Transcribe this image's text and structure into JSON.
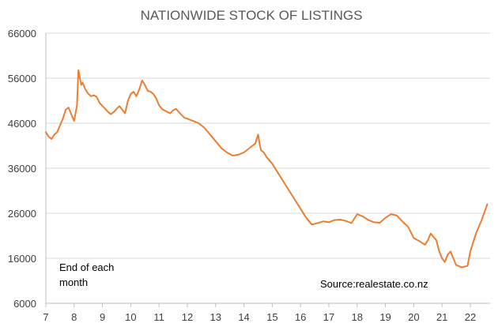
{
  "chart_data": {
    "type": "line",
    "title": "NATIONWIDE STOCK OF LISTINGS",
    "xlabel": "",
    "ylabel": "",
    "x_ticks": [
      "7",
      "8",
      "9",
      "10",
      "11",
      "12",
      "13",
      "14",
      "15",
      "16",
      "17",
      "18",
      "19",
      "20",
      "21",
      "22"
    ],
    "xlim": [
      7,
      22.7
    ],
    "ylim": [
      6000,
      66000
    ],
    "y_ticks": [
      "6000",
      "16000",
      "26000",
      "36000",
      "46000",
      "56000",
      "66000"
    ],
    "grid": true,
    "legend": "none",
    "annotations": [
      {
        "lines": [
          "End of each",
          "month"
        ]
      },
      {
        "lines": [
          "Source:realestate.co.nz"
        ]
      }
    ],
    "series": [
      {
        "color": "#ED7D31",
        "x": [
          7.0,
          7.1,
          7.2,
          7.3,
          7.4,
          7.5,
          7.6,
          7.7,
          7.8,
          7.9,
          8.0,
          8.1,
          8.15,
          8.25,
          8.3,
          8.4,
          8.5,
          8.6,
          8.7,
          8.8,
          8.9,
          9.0,
          9.1,
          9.2,
          9.3,
          9.4,
          9.5,
          9.6,
          9.7,
          9.8,
          9.9,
          10.0,
          10.1,
          10.2,
          10.3,
          10.4,
          10.5,
          10.55,
          10.6,
          10.7,
          10.8,
          10.9,
          11.0,
          11.1,
          11.2,
          11.3,
          11.4,
          11.5,
          11.6,
          11.7,
          11.8,
          11.9,
          12.0,
          12.2,
          12.4,
          12.6,
          12.8,
          13.0,
          13.2,
          13.4,
          13.6,
          13.8,
          14.0,
          14.2,
          14.4,
          14.5,
          14.55,
          14.6,
          14.7,
          14.8,
          15.0,
          15.2,
          15.4,
          15.6,
          15.8,
          16.0,
          16.2,
          16.4,
          16.6,
          16.8,
          17.0,
          17.2,
          17.4,
          17.6,
          17.8,
          18.0,
          18.2,
          18.4,
          18.6,
          18.8,
          19.0,
          19.2,
          19.4,
          19.6,
          19.8,
          20.0,
          20.2,
          20.4,
          20.5,
          20.6,
          20.8,
          20.9,
          21.0,
          21.1,
          21.2,
          21.3,
          21.5,
          21.7,
          21.9,
          22.0,
          22.2,
          22.4,
          22.6
        ],
        "values": [
          44000,
          43000,
          42500,
          43500,
          44000,
          45500,
          47000,
          49000,
          49500,
          48000,
          46500,
          50000,
          57800,
          54500,
          55000,
          53500,
          52500,
          52000,
          52200,
          51800,
          50500,
          49800,
          49200,
          48500,
          48000,
          48500,
          49200,
          49800,
          49000,
          48200,
          51000,
          52500,
          53000,
          52000,
          53500,
          55500,
          54500,
          53800,
          53200,
          53000,
          52500,
          51500,
          50000,
          49200,
          48800,
          48500,
          48200,
          48900,
          49200,
          48500,
          47800,
          47200,
          47000,
          46500,
          46000,
          45000,
          43500,
          42000,
          40500,
          39500,
          38800,
          39000,
          39500,
          40500,
          41500,
          43500,
          41500,
          40000,
          39500,
          38500,
          37000,
          35000,
          33000,
          31000,
          29000,
          27000,
          25000,
          23500,
          23800,
          24200,
          24000,
          24500,
          24600,
          24300,
          23800,
          25800,
          25300,
          24500,
          24000,
          23900,
          25000,
          25800,
          25500,
          24200,
          23000,
          20500,
          19800,
          19000,
          20000,
          21500,
          20000,
          17500,
          16000,
          15200,
          16800,
          17500,
          14500,
          14000,
          14300,
          17500,
          21500,
          24500,
          28000
        ]
      }
    ]
  }
}
